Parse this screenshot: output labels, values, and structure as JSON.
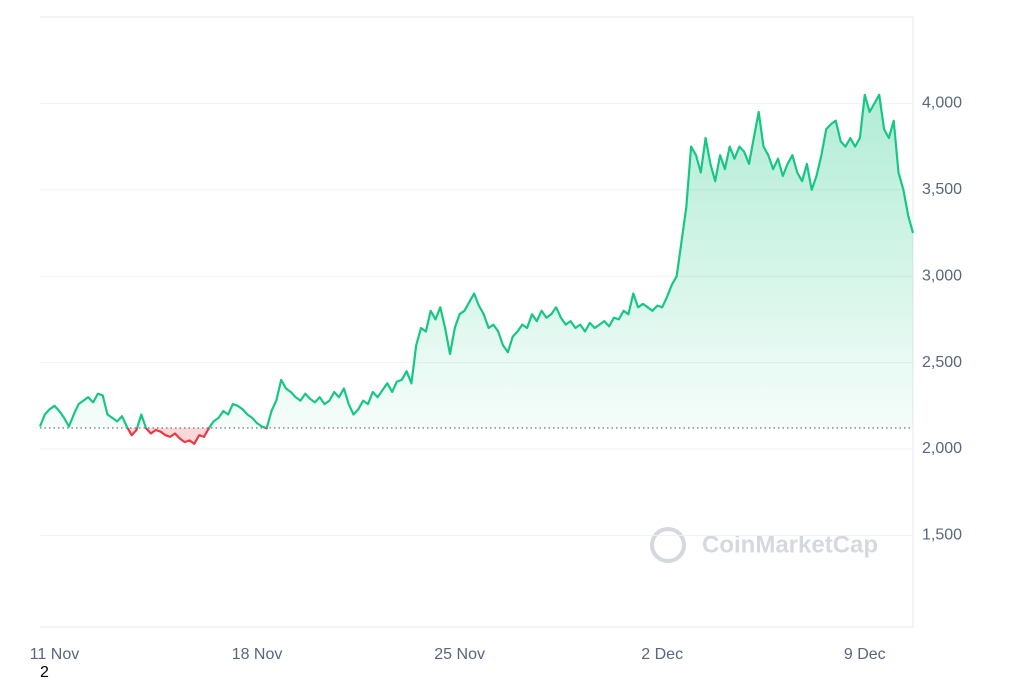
{
  "chart_data": {
    "type": "line",
    "watermark": "CoinMarketCap",
    "footnote": "2",
    "categories": [
      null,
      null,
      null,
      "11 Nov",
      null,
      null,
      null,
      null,
      null,
      null,
      null,
      null,
      null,
      null,
      null,
      null,
      null,
      null,
      null,
      null,
      null,
      null,
      null,
      null,
      null,
      null,
      null,
      null,
      null,
      null,
      null,
      null,
      null,
      null,
      null,
      null,
      null,
      null,
      null,
      null,
      null,
      null,
      null,
      null,
      null,
      "18 Nov",
      null,
      null,
      null,
      null,
      null,
      null,
      null,
      null,
      null,
      null,
      null,
      null,
      null,
      null,
      null,
      null,
      null,
      null,
      null,
      null,
      null,
      null,
      null,
      null,
      null,
      null,
      null,
      null,
      null,
      null,
      null,
      null,
      null,
      null,
      null,
      null,
      null,
      null,
      null,
      null,
      null,
      "25 Nov",
      null,
      null,
      null,
      null,
      null,
      null,
      null,
      null,
      null,
      null,
      null,
      null,
      null,
      null,
      null,
      null,
      null,
      null,
      null,
      null,
      null,
      null,
      null,
      null,
      null,
      null,
      null,
      null,
      null,
      null,
      null,
      null,
      null,
      null,
      null,
      null,
      null,
      null,
      null,
      null,
      null,
      "2 Dec",
      null,
      null,
      null,
      null,
      null,
      null,
      null,
      null,
      null,
      null,
      null,
      null,
      null,
      null,
      null,
      null,
      null,
      null,
      null,
      null,
      null,
      null,
      null,
      null,
      null,
      null,
      null,
      null,
      null,
      null,
      null,
      null,
      null,
      null,
      null,
      null,
      null,
      null,
      null,
      null,
      null,
      "9 Dec",
      null,
      null,
      null,
      null,
      null,
      null,
      null,
      null,
      null,
      null
    ],
    "values": [
      2130,
      2200,
      2230,
      2250,
      2220,
      2180,
      2130,
      2200,
      2260,
      2280,
      2300,
      2270,
      2320,
      2310,
      2200,
      2180,
      2160,
      2190,
      2130,
      2080,
      2110,
      2200,
      2120,
      2090,
      2110,
      2100,
      2080,
      2070,
      2090,
      2060,
      2040,
      2050,
      2030,
      2080,
      2070,
      2120,
      2160,
      2180,
      2220,
      2200,
      2260,
      2250,
      2230,
      2200,
      2180,
      2150,
      2130,
      2120,
      2220,
      2280,
      2400,
      2350,
      2330,
      2300,
      2280,
      2320,
      2290,
      2270,
      2300,
      2260,
      2280,
      2330,
      2300,
      2350,
      2260,
      2200,
      2230,
      2280,
      2260,
      2330,
      2300,
      2340,
      2380,
      2330,
      2390,
      2400,
      2450,
      2380,
      2600,
      2700,
      2680,
      2800,
      2750,
      2820,
      2700,
      2550,
      2700,
      2780,
      2800,
      2850,
      2900,
      2830,
      2780,
      2700,
      2720,
      2680,
      2600,
      2560,
      2650,
      2680,
      2720,
      2700,
      2780,
      2740,
      2800,
      2760,
      2780,
      2820,
      2760,
      2720,
      2740,
      2700,
      2720,
      2680,
      2730,
      2700,
      2720,
      2740,
      2710,
      2760,
      2750,
      2800,
      2780,
      2900,
      2820,
      2840,
      2820,
      2800,
      2830,
      2820,
      2880,
      2950,
      3000,
      3200,
      3400,
      3750,
      3700,
      3600,
      3800,
      3650,
      3550,
      3700,
      3620,
      3750,
      3680,
      3750,
      3720,
      3650,
      3800,
      3950,
      3750,
      3700,
      3620,
      3680,
      3580,
      3650,
      3700,
      3600,
      3550,
      3650,
      3500,
      3580,
      3700,
      3850,
      3880,
      3900,
      3780,
      3750,
      3800,
      3750,
      3800,
      4050,
      3950,
      4000,
      4050,
      3850,
      3800,
      3900,
      3600,
      3500,
      3350,
      3250
    ],
    "color": "#16c784",
    "negative_color": "#ea3943",
    "baseline": 2122,
    "ylim": [
      970,
      4500
    ],
    "yticks": [
      {
        "value": 1500,
        "label": "1,500"
      },
      {
        "value": 2000,
        "label": "2,000"
      },
      {
        "value": 2500,
        "label": "2,500"
      },
      {
        "value": 3000,
        "label": "3,000"
      },
      {
        "value": 3500,
        "label": "3,500"
      },
      {
        "value": 4000,
        "label": "4,000"
      }
    ],
    "grid": true
  }
}
